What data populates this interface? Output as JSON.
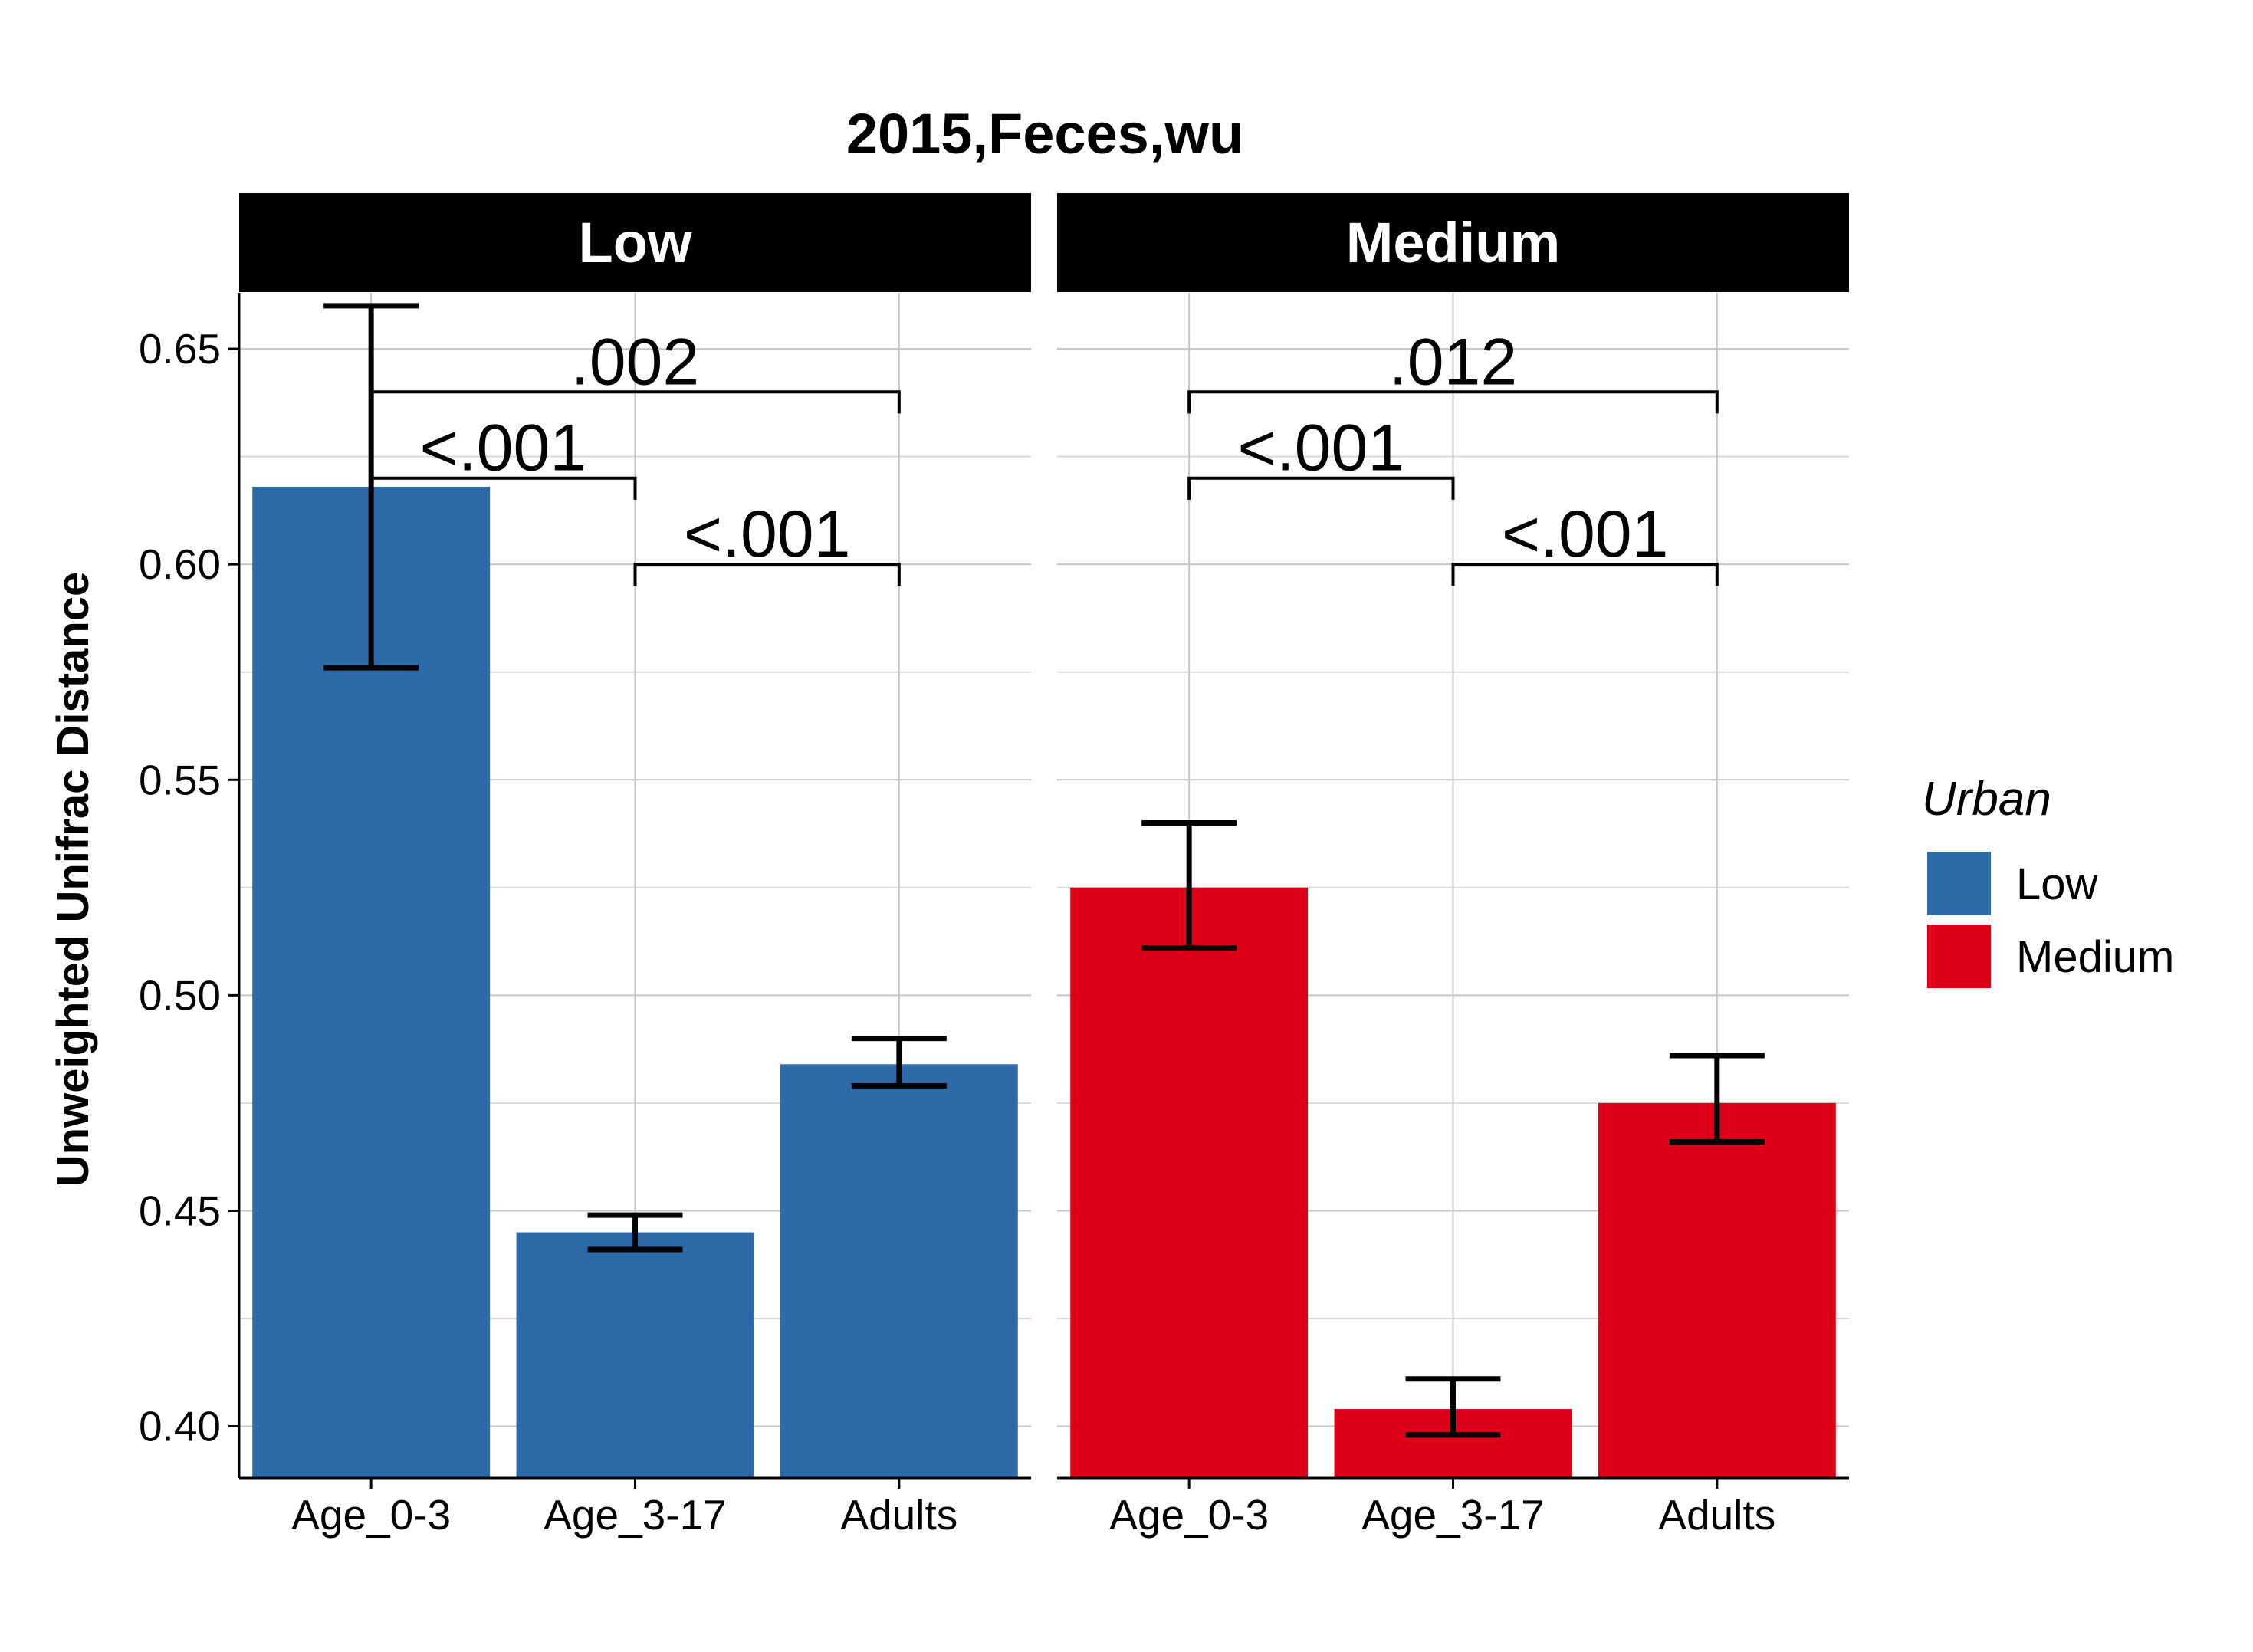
{
  "chart_data": {
    "type": "bar",
    "title": "2015,Feces,wu",
    "ylabel": "Unweighted Unifrac Distance",
    "xlabel": "",
    "ylim": [
      0.388,
      0.663
    ],
    "yticks": [
      0.4,
      0.45,
      0.5,
      0.55,
      0.6,
      0.65
    ],
    "ytick_labels": [
      "0.40",
      "0.45",
      "0.50",
      "0.55",
      "0.60",
      "0.65"
    ],
    "grid": true,
    "categories": [
      "Age_0-3",
      "Age_3-17",
      "Adults"
    ],
    "legend": {
      "title": "Urban",
      "position": "right",
      "entries": [
        {
          "label": "Low",
          "color": "#2e6aa8"
        },
        {
          "label": "Medium",
          "color": "#dc0019"
        }
      ]
    },
    "panels": [
      {
        "label": "Low",
        "color": "#2e6aa8",
        "values": [
          0.618,
          0.445,
          0.484
        ],
        "error_low": [
          0.576,
          0.441,
          0.479
        ],
        "error_high": [
          0.66,
          0.449,
          0.49
        ],
        "comparisons": [
          {
            "from": "Age_0-3",
            "to": "Adults",
            "label": ".002",
            "y": 0.64,
            "tip": 0.635
          },
          {
            "from": "Age_0-3",
            "to": "Age_3-17",
            "label": "<.001",
            "y": 0.62,
            "tip": 0.615
          },
          {
            "from": "Age_3-17",
            "to": "Adults",
            "label": "<.001",
            "y": 0.6,
            "tip": 0.595
          }
        ]
      },
      {
        "label": "Medium",
        "color": "#dc0019",
        "values": [
          0.525,
          0.404,
          0.475
        ],
        "error_low": [
          0.511,
          0.398,
          0.466
        ],
        "error_high": [
          0.54,
          0.411,
          0.486
        ],
        "comparisons": [
          {
            "from": "Age_0-3",
            "to": "Adults",
            "label": ".012",
            "y": 0.64,
            "tip": 0.635
          },
          {
            "from": "Age_0-3",
            "to": "Age_3-17",
            "label": "<.001",
            "y": 0.62,
            "tip": 0.615
          },
          {
            "from": "Age_3-17",
            "to": "Adults",
            "label": "<.001",
            "y": 0.6,
            "tip": 0.595
          }
        ]
      }
    ]
  }
}
